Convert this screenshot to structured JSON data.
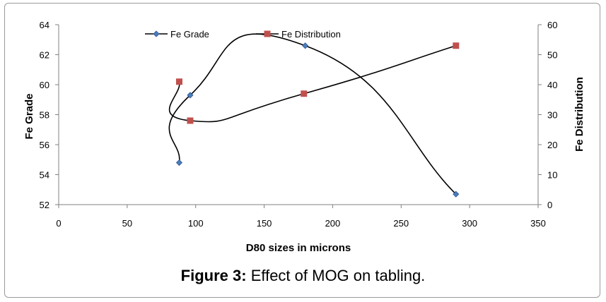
{
  "chart_data": {
    "type": "scatter",
    "title": "",
    "xlabel": "D80 sizes in microns",
    "ylabel": "Fe Grade",
    "y2label": "Fe Distribution",
    "xlim": [
      0,
      350
    ],
    "ylim": [
      52,
      64
    ],
    "y2lim": [
      0,
      60
    ],
    "xticks": [
      0,
      50,
      100,
      150,
      200,
      250,
      300,
      350
    ],
    "yticks": [
      52,
      54,
      56,
      58,
      60,
      62,
      64
    ],
    "y2ticks": [
      0,
      10,
      20,
      30,
      40,
      50,
      60
    ],
    "legend_position": "top",
    "series": [
      {
        "name": "Fe Grade",
        "axis": "left",
        "marker": "diamond",
        "color": "#4a7ebb",
        "x": [
          88,
          96,
          180,
          290
        ],
        "y": [
          54.8,
          59.3,
          62.6,
          52.7
        ]
      },
      {
        "name": "Fe Distribution",
        "axis": "right",
        "marker": "square",
        "color": "#c0504d",
        "x": [
          88,
          96,
          179,
          290
        ],
        "y": [
          41,
          28,
          37,
          53
        ]
      }
    ]
  },
  "caption": {
    "label": "Figure 3:",
    "text": " Effect of MOG on tabling."
  }
}
